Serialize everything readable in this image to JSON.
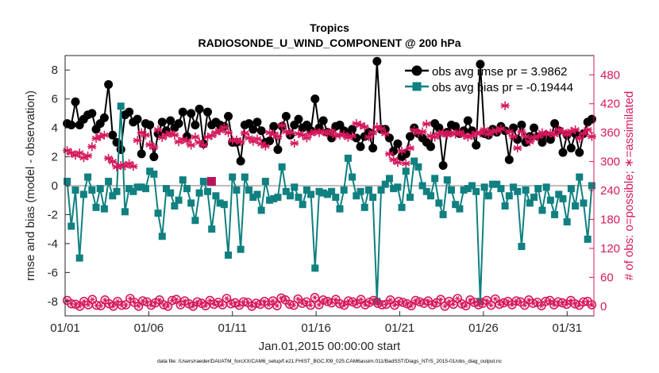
{
  "chart_data": {
    "type": "line",
    "title": "Tropics",
    "subtitle": "RADIOSONDE_U_WIND_COMPONENT @ 200 hPa",
    "xlabel": "Jan.01,2015 00:00:00 start",
    "ylabel_left": "rmse and bias (model - observation)",
    "ylabel_right": "# of obs: o=possible; ∗=assimilated",
    "footer": "data file: /Users/raeder/DAI/ATM_forcXX/CAM6_setup/f.e21.FHIST_BGC.f09_025.CAM6assim.011/BadSST/Diags_NTrS_2015-01/obs_diag_output.nc",
    "x_range_days": [
      0,
      31.6
    ],
    "xticks": [
      {
        "day": 0,
        "label": "01/01"
      },
      {
        "day": 5,
        "label": "01/06"
      },
      {
        "day": 10,
        "label": "01/11"
      },
      {
        "day": 15,
        "label": "01/16"
      },
      {
        "day": 20,
        "label": "01/21"
      },
      {
        "day": 25,
        "label": "01/26"
      },
      {
        "day": 30,
        "label": "01/31"
      }
    ],
    "ylim_left": [
      -9,
      9
    ],
    "yticks_left": [
      -8,
      -6,
      -4,
      -2,
      0,
      2,
      4,
      6,
      8
    ],
    "ylim_right": [
      -20,
      520
    ],
    "yticks_right": [
      0,
      60,
      120,
      180,
      240,
      300,
      360,
      420,
      480
    ],
    "grid": false,
    "zero_line": true,
    "legend_location": "top-right",
    "series": [
      {
        "name": "obs avg rmse pr = 3.9862",
        "axis": "left",
        "color": "#000000",
        "marker": "circle",
        "values": [
          4.3,
          4.2,
          5.8,
          4.2,
          4.6,
          4.9,
          5.0,
          3.9,
          4.3,
          4.7,
          7.0,
          3.5,
          3.0,
          2.5,
          4.9,
          5.1,
          4.4,
          4.6,
          2.2,
          4.3,
          4.2,
          2.0,
          3.6,
          4.4,
          3.8,
          4.5,
          4.0,
          4.3,
          5.1,
          3.4,
          5.0,
          4.2,
          5.3,
          2.9,
          5.1,
          4.2,
          4.4,
          4.2,
          4.1,
          4.8,
          3.0,
          3.0,
          1.7,
          4.2,
          4.3,
          3.9,
          4.4,
          3.8,
          3.0,
          3.1,
          4.1,
          2.5,
          4.1,
          4.8,
          3.5,
          4.2,
          4.6,
          4.0,
          4.2,
          3.8,
          6.0,
          4.0,
          4.5,
          3.7,
          3.3,
          4.1,
          4.2,
          3.8,
          3.6,
          3.9,
          3.3,
          2.7,
          3.4,
          3.7,
          2.6,
          8.6,
          3.9,
          3.9,
          3.3,
          2.4,
          2.9,
          2.0,
          2.2,
          3.4,
          4.0,
          3.6,
          3.3,
          3.0,
          2.7,
          4.3,
          4.0,
          1.4,
          3.7,
          4.2,
          4.1,
          3.6,
          3.8,
          4.5,
          3.8,
          2.8,
          8.4,
          3.6,
          3.5,
          3.9,
          3.7,
          4.1,
          3.8,
          1.8,
          4.0,
          3.2,
          4.2,
          3.0,
          3.4,
          4.0,
          3.4,
          3.0,
          3.5,
          3.2,
          4.3,
          3.8,
          2.3,
          3.5,
          2.6,
          3.6,
          2.3,
          3.6,
          4.4,
          4.6
        ]
      },
      {
        "name": "obs avg bias pr = -0.19444",
        "axis": "left",
        "color": "#108080",
        "marker": "square",
        "values": [
          0.3,
          -2.8,
          -0.3,
          -5.0,
          -0.6,
          0.6,
          -0.3,
          -1.5,
          -0.2,
          -1.6,
          0.3,
          -0.7,
          -0.4,
          5.5,
          -1.8,
          -0.2,
          -0.4,
          -0.1,
          -0.1,
          -0.2,
          1.0,
          0.8,
          -1.9,
          -3.5,
          -0.2,
          -0.5,
          -1.4,
          -1.0,
          0.4,
          -0.2,
          -1.2,
          -2.4,
          -0.5,
          0.3,
          -0.4,
          -3.0,
          -0.7,
          -1.2,
          -1.3,
          -4.8,
          0.6,
          -0.3,
          -4.4,
          0.6,
          -0.3,
          -0.8,
          -0.6,
          -1.7,
          0.3,
          -1.0,
          -0.9,
          -0.8,
          1.3,
          -0.4,
          -0.7,
          -0.1,
          -0.8,
          -1.3,
          -0.3,
          -0.6,
          -5.7,
          -0.4,
          -0.5,
          -0.6,
          -0.4,
          -0.8,
          -1.6,
          -0.3,
          1.9,
          0.6,
          -0.7,
          -0.4,
          -1.5,
          -0.3,
          -0.8,
          -8.0,
          -0.3,
          0.1,
          0.5,
          -0.2,
          -0.1,
          -1.5,
          1.0,
          -0.8,
          1.7,
          1.3,
          0.0,
          -0.4,
          -0.7,
          0.5,
          -1.2,
          -2.0,
          0.4,
          -0.3,
          -1.3,
          -1.6,
          -0.3,
          -0.2,
          0.0,
          -0.4,
          -8.0,
          -0.1,
          -0.7,
          0.1,
          0.1,
          -0.2,
          -1.4,
          -0.7,
          -0.1,
          -0.4,
          -4.2,
          -0.3,
          -1.2,
          -0.8,
          -0.2,
          -1.7,
          -0.1,
          -1.0,
          -2.0,
          -0.6,
          -0.9,
          -2.5,
          -0.2,
          -1.4,
          0.6,
          -1.2,
          -3.7,
          0.0
        ]
      },
      {
        "name": "# of obs possible",
        "axis": "right",
        "color": "#d6185c",
        "marker": "circle-open",
        "values": [
          12,
          5,
          4,
          0,
          10,
          3,
          14,
          2,
          1,
          13,
          5,
          0,
          10,
          2,
          3,
          16,
          8,
          0,
          11,
          9,
          2,
          7,
          13,
          3,
          0,
          12,
          14,
          3,
          11,
          5,
          0,
          9,
          6,
          1,
          12,
          4,
          8,
          3,
          16,
          5,
          7,
          2,
          9,
          8,
          0,
          6,
          4,
          10,
          3,
          11,
          1,
          17,
          13,
          4,
          2,
          15,
          6,
          9,
          2,
          18,
          3,
          13,
          10,
          7,
          14,
          5,
          2,
          11,
          9,
          5,
          14,
          3,
          8,
          12,
          6,
          3,
          4,
          13,
          2,
          10,
          8,
          5,
          1,
          12,
          9,
          6,
          11,
          3,
          7,
          14,
          0,
          10,
          4,
          16,
          5,
          1,
          13,
          8,
          3,
          6,
          12,
          2,
          15,
          4,
          7,
          10,
          3,
          11,
          9,
          2,
          13,
          6,
          8,
          1,
          10,
          12,
          3,
          9,
          7,
          4,
          12,
          5,
          2,
          9,
          10,
          3
        ]
      },
      {
        "name": "# of obs assimilated",
        "axis": "right",
        "color": "#d6185c",
        "marker": "asterisk",
        "values": [
          323,
          318,
          313,
          318,
          308,
          312,
          331,
          348,
          352,
          355,
          307,
          300,
          289,
          292,
          291,
          296,
          290,
          344,
          360,
          355,
          335,
          330,
          366,
          350,
          355,
          359,
          355,
          341,
          346,
          343,
          334,
          351,
          340,
          334,
          351,
          354,
          360,
          364,
          371,
          360,
          344,
          345,
          341,
          359,
          349,
          342,
          347,
          337,
          332,
          360,
          357,
          352,
          375,
          362,
          360,
          338,
          358,
          355,
          349,
          358,
          362,
          360,
          362,
          358,
          363,
          354,
          355,
          356,
          350,
          353,
          379,
          376,
          372,
          351,
          360,
          372,
          368,
          358,
          316,
          304,
          298,
          322,
          296,
          328,
          365,
          360,
          362,
          378,
          353,
          351,
          357,
          360,
          355,
          360,
          357,
          361,
          355,
          351,
          354,
          359,
          359,
          366,
          357,
          363,
          364,
          368,
          416,
          362,
          352,
          328,
          362,
          352,
          341,
          350,
          352,
          360,
          357,
          359,
          356,
          366,
          362,
          356,
          363,
          366,
          348,
          358,
          366,
          352
        ]
      }
    ],
    "highlight_point": {
      "day": 8.75,
      "value": 0.3,
      "color": "#b8145c",
      "marker": "square"
    }
  }
}
